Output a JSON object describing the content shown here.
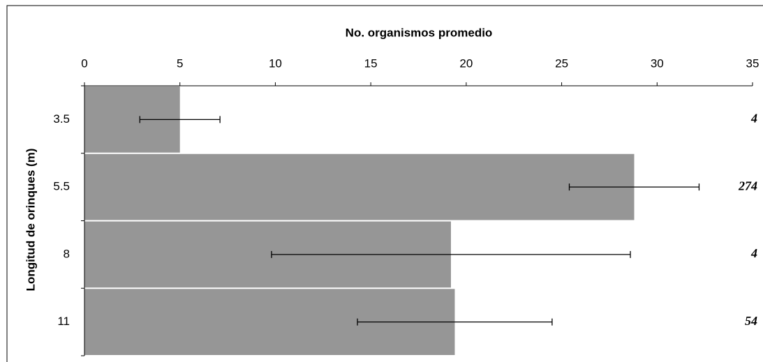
{
  "chart_data": {
    "type": "hbar",
    "x_title": "No. organismos promedio",
    "y_title": "Longitud de orinques (m)",
    "categories": [
      "3.5",
      "5.5",
      "8",
      "11"
    ],
    "values": [
      5,
      28.8,
      19.2,
      19.4
    ],
    "errors": [
      2.1,
      3.4,
      9.4,
      5.1
    ],
    "annotations": [
      "4",
      "274",
      "4",
      "54"
    ],
    "color": "#969696",
    "xlim": [
      0,
      35
    ],
    "xticks": [
      0,
      5,
      10,
      15,
      20,
      25,
      30,
      35
    ]
  }
}
